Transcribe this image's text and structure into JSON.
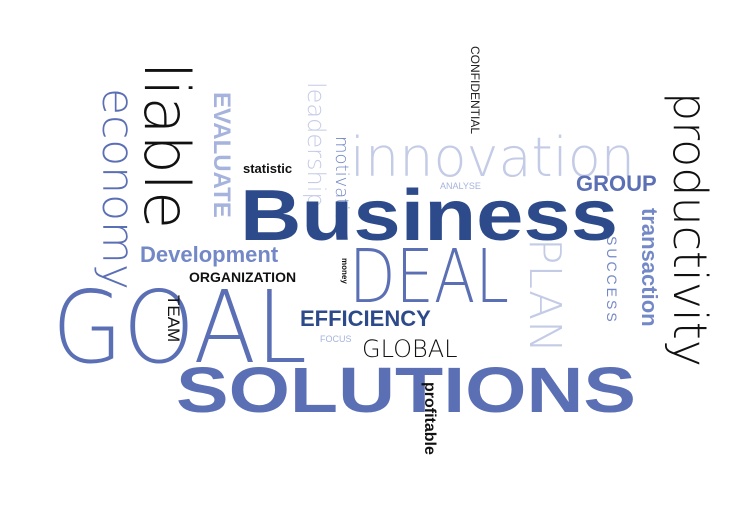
{
  "image": {
    "description_free": true
  },
  "colors": {
    "navy": "#2d4a8a",
    "royal": "#5b6fb5",
    "steel": "#7388c6",
    "light": "#a6b3dd",
    "pale": "#c4cbe6",
    "black": "#111111"
  },
  "words": {
    "business": "Business",
    "deal": "DEAL",
    "goal": "GOAL",
    "solutions": "SOLUTIONS",
    "innovation": "innovation",
    "liable": "liable",
    "economy": "economy",
    "evaluate": "EVALUATE",
    "leadership": "leadership",
    "motivation": "motivation",
    "statistic": "statistic",
    "confidential": "CONFIDENTIAL",
    "analyse": "ANALYSE",
    "group": "GROUP",
    "productivity": "productivity",
    "transaction": "transaction",
    "success": "SUCCESS",
    "plan": "PLAN",
    "development": "Development",
    "organization": "ORGANIZATION",
    "money": "money",
    "team": "TEAM",
    "efficiency": "EFFICIENCY",
    "focus": "FOCUS",
    "global": "GLOBAL",
    "profitable": "profitable"
  }
}
